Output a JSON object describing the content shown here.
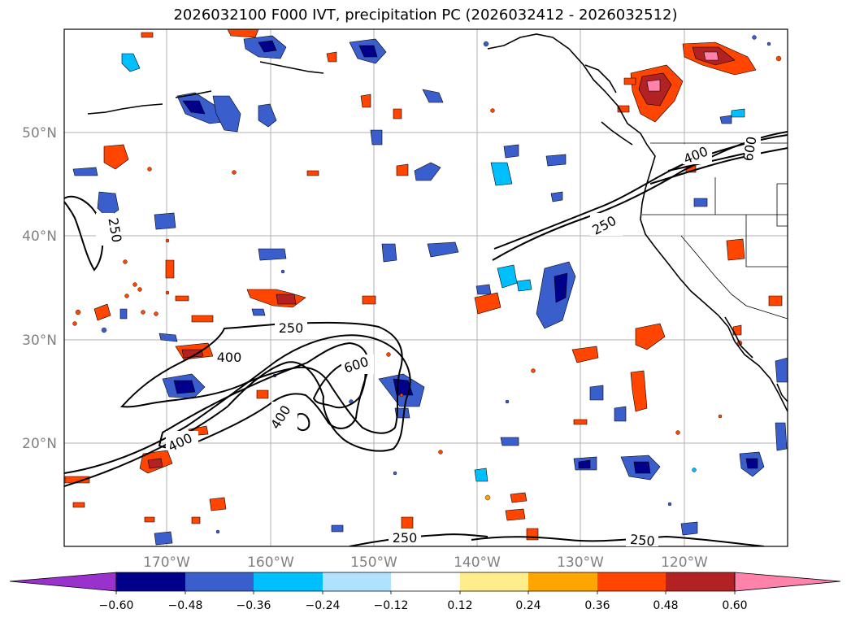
{
  "title": "2026032100 F000 IVT, precipitation PC (2026032412 - 2026032512)",
  "map": {
    "lat_labels": [
      "50°N",
      "40°N",
      "30°N",
      "20°N"
    ],
    "lon_labels": [
      "170°W",
      "160°W",
      "150°W",
      "140°W",
      "130°W",
      "120°W"
    ],
    "ivt_contour_labels": [
      "250",
      "250",
      "250",
      "400",
      "600",
      "400",
      "400",
      "250",
      "250",
      "400",
      "600"
    ]
  },
  "colorbar": {
    "ticks": [
      "−0.60",
      "−0.48",
      "−0.36",
      "−0.24",
      "−0.12",
      "0.12",
      "0.24",
      "0.36",
      "0.48",
      "0.60"
    ],
    "colors": [
      "#9932cc",
      "#00008b",
      "#3a5fcd",
      "#00bfff",
      "#b0e2ff",
      "#ffffff",
      "#ffec8b",
      "#ffa500",
      "#ff4500",
      "#b22222",
      "#ff82ab"
    ]
  }
}
